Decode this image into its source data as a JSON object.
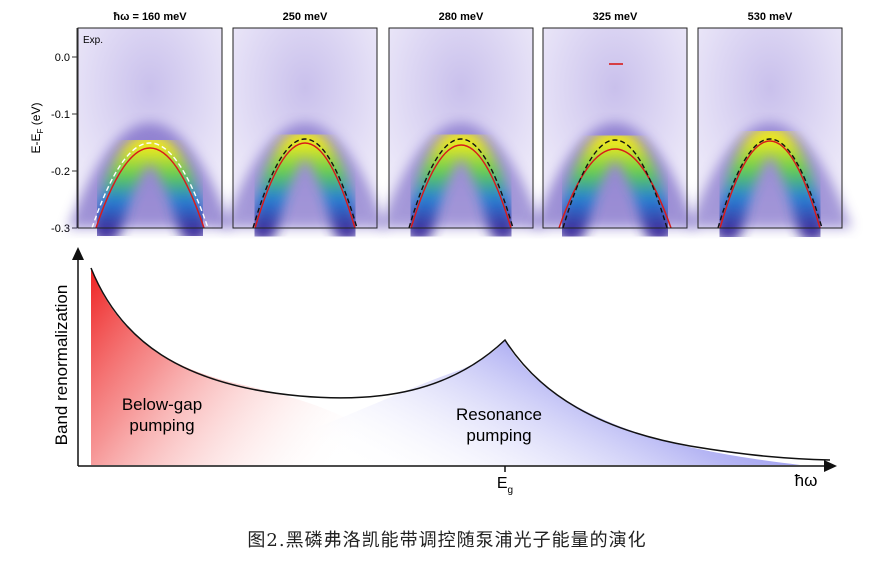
{
  "panels": {
    "titles": [
      "ħω = 160 meV",
      "250 meV",
      "280 meV",
      "325 meV",
      "530 meV"
    ],
    "exp_tag": "Exp.",
    "y_axis_label": "E-E",
    "y_axis_sub": "F",
    "y_axis_unit": " (eV)",
    "y_ticks": [
      "0.0",
      "-0.1",
      "-0.2",
      "-0.3"
    ]
  },
  "schematic": {
    "y_axis_label": "Band renormalization",
    "below_gap_line1": "Below-gap",
    "below_gap_line2": "pumping",
    "resonance_line1": "Resonance",
    "resonance_line2": "pumping",
    "eg_label": "E",
    "eg_sub": "g",
    "x_axis_label": "ħω"
  },
  "caption": "图2.黑磷弗洛凯能带调控随泵浦光子能量的演化",
  "colors": {
    "below_gap_fill": "#ee2222",
    "resonance_fill": "#6a6ae6",
    "fit_curve": "#d81b1b",
    "band_map_hot": "#f3ee14"
  }
}
